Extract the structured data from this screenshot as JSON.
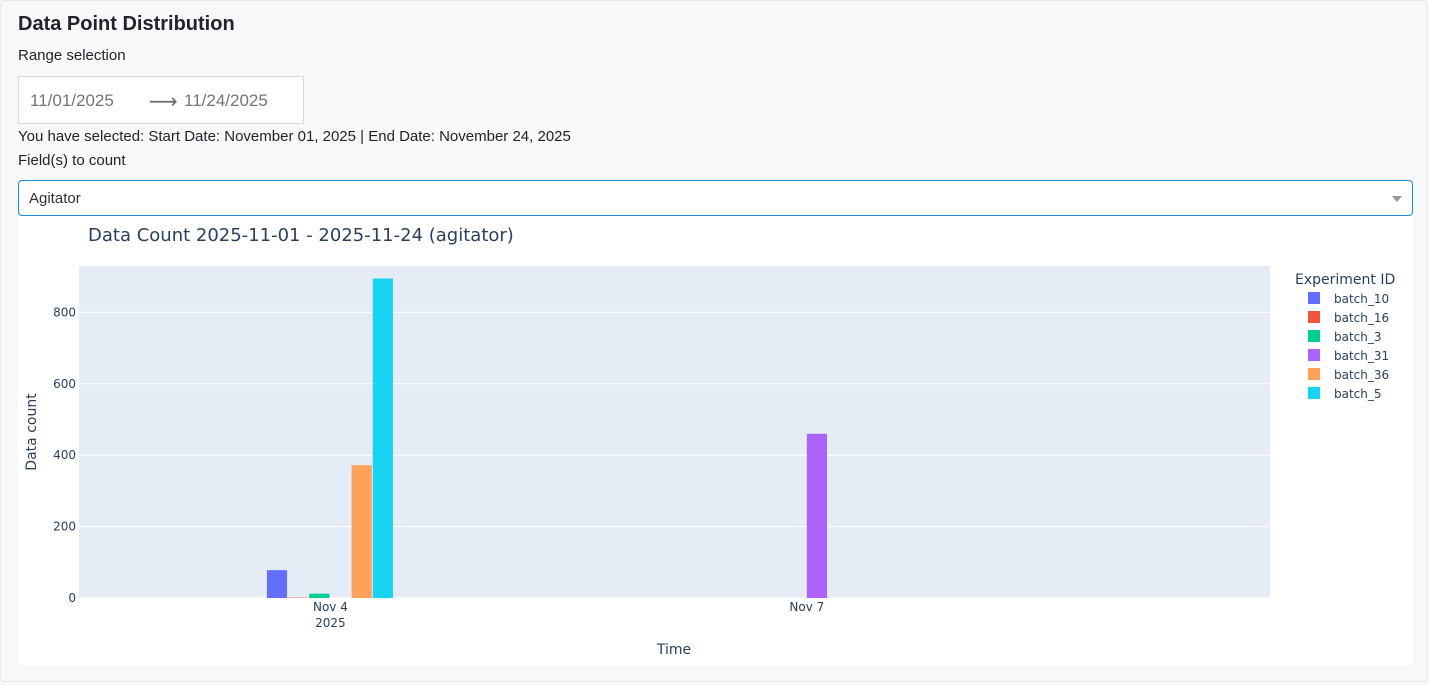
{
  "page": {
    "title": "Data Point Distribution",
    "range_label": "Range selection",
    "start_date": "11/01/2025",
    "end_date": "11/24/2025",
    "selection_text": "You have selected: Start Date: November 01, 2025 | End Date: November 24, 2025",
    "fields_label": "Field(s) to count",
    "field_value": "Agitator"
  },
  "chart_data": {
    "type": "bar",
    "title": "Data Count 2025-11-01 - 2025-11-24 (agitator)",
    "xlabel": "Time",
    "ylabel": "Data count",
    "ylim": [
      0,
      930
    ],
    "y_ticks": [
      0,
      200,
      400,
      600,
      800
    ],
    "x_range": [
      "2025-11-02T10:00",
      "2025-11-09T22:00"
    ],
    "x_ticks": [
      {
        "date": "2025-11-04",
        "label": "Nov 4",
        "sublabel": "2025"
      },
      {
        "date": "2025-11-07",
        "label": "Nov 7",
        "sublabel": ""
      }
    ],
    "legend_title": "Experiment ID",
    "legend_position": "right",
    "grid": true,
    "series": [
      {
        "name": "batch_10",
        "color": "#636efa",
        "x": [
          "2025-11-04"
        ],
        "values": [
          78
        ]
      },
      {
        "name": "batch_16",
        "color": "#ef553b",
        "x": [
          "2025-11-04"
        ],
        "values": [
          1
        ]
      },
      {
        "name": "batch_3",
        "color": "#00cc96",
        "x": [
          "2025-11-04"
        ],
        "values": [
          12
        ]
      },
      {
        "name": "batch_31",
        "color": "#ab63fa",
        "x": [
          "2025-11-07"
        ],
        "values": [
          460
        ]
      },
      {
        "name": "batch_36",
        "color": "#ffa15a",
        "x": [
          "2025-11-04"
        ],
        "values": [
          372
        ]
      },
      {
        "name": "batch_5",
        "color": "#19d3f3",
        "x": [
          "2025-11-04"
        ],
        "values": [
          895
        ]
      }
    ]
  }
}
